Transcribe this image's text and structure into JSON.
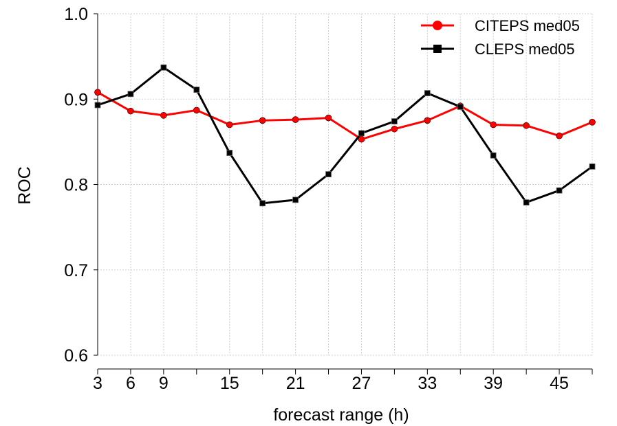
{
  "chart_data": {
    "type": "line",
    "xlabel": "forecast range (h)",
    "ylabel": "ROC",
    "x": [
      3,
      6,
      9,
      12,
      15,
      18,
      21,
      24,
      27,
      30,
      33,
      36,
      39,
      42,
      45,
      48
    ],
    "x_tick_labels": [
      "3",
      "6",
      "9",
      "15",
      "21",
      "27",
      "33",
      "39",
      "45"
    ],
    "x_tick_label_values": [
      3,
      6,
      9,
      15,
      21,
      27,
      33,
      39,
      45
    ],
    "xlim": [
      3,
      48
    ],
    "ylim": [
      0.6,
      1.0
    ],
    "y_ticks": [
      0.6,
      0.7,
      0.8,
      0.9,
      1.0
    ],
    "y_tick_labels": [
      "0.6",
      "0.7",
      "0.8",
      "0.9",
      "1.0"
    ],
    "grid": true,
    "legend_position": "top-right",
    "series": [
      {
        "name": "CITEPS med05",
        "color": "#ff0000",
        "marker": "circle",
        "values": [
          0.908,
          0.886,
          0.881,
          0.887,
          0.87,
          0.875,
          0.876,
          0.878,
          0.853,
          0.865,
          0.875,
          0.892,
          0.87,
          0.869,
          0.857,
          0.873
        ]
      },
      {
        "name": "CLEPS med05",
        "color": "#000000",
        "marker": "square",
        "values": [
          0.893,
          0.906,
          0.937,
          0.911,
          0.837,
          0.778,
          0.782,
          0.812,
          0.86,
          0.874,
          0.907,
          0.891,
          0.834,
          0.779,
          0.793,
          0.821
        ]
      }
    ]
  }
}
